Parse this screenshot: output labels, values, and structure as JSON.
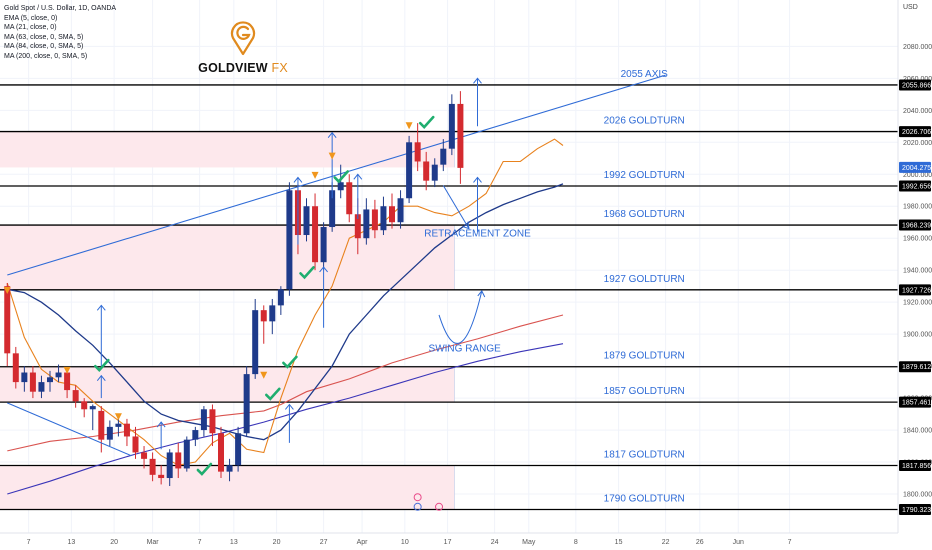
{
  "header": {
    "symbol_line": "Gold Spot / U.S. Dollar, 1D, OANDA",
    "indicators": [
      "EMA (5, close, 0)",
      "MA (21, close, 0)",
      "MA (63, close, 0, SMA, 5)",
      "MA (84, close, 0, SMA, 5)",
      "MA (200, close, 0, SMA, 5)"
    ]
  },
  "logo": {
    "brand": "GOLDVIEW",
    "suffix": "FX",
    "icon": "pin-g-logo-icon"
  },
  "currency": "USD",
  "colors": {
    "bull": "#1e3a8a",
    "bear": "#d42a2f",
    "ema5": "#e8821e",
    "ma21": "#1f3a8a",
    "ma63": "#d9534f",
    "ma84": "#3a35b8",
    "annotation_blue": "#2f6bd6",
    "zone_fill": "#fde8ec",
    "check": "#1fae6f",
    "marker": "#f0961c"
  },
  "chart_data": {
    "type": "candlestick",
    "y_axis": {
      "range": [
        1785,
        2104
      ],
      "tick_labels": [
        "2080.000",
        "2060.000",
        "2040.000",
        "2020.000",
        "2000.000",
        "1980.000",
        "1960.000",
        "1940.000",
        "1920.000",
        "1900.000",
        "1880.000",
        "1860.000",
        "1840.000",
        "1820.000",
        "1800.000"
      ],
      "tick_values": [
        2080,
        2060,
        2040,
        2020,
        2000,
        1980,
        1960,
        1940,
        1920,
        1900,
        1880,
        1860,
        1840,
        1820,
        1800
      ],
      "badges": [
        {
          "text": "2055.866",
          "value": 2055.866
        },
        {
          "text": "2026.706",
          "value": 2026.706
        },
        {
          "text": "2004.275",
          "value": 2004.275,
          "current": true
        },
        {
          "text": "1992.656",
          "value": 1992.656
        },
        {
          "text": "1968.239",
          "value": 1968.239
        },
        {
          "text": "1927.726",
          "value": 1927.726
        },
        {
          "text": "1879.612",
          "value": 1879.612
        },
        {
          "text": "1857.461",
          "value": 1857.461
        },
        {
          "text": "1817.856",
          "value": 1817.856
        },
        {
          "text": "1790.323",
          "value": 1790.323
        }
      ]
    },
    "x_axis": {
      "tick_labels": [
        "7",
        "13",
        "20",
        "Mar",
        "7",
        "13",
        "20",
        "27",
        "Apr",
        "10",
        "17",
        "24",
        "May",
        "8",
        "15",
        "22",
        "26",
        "Jun",
        "7"
      ],
      "tick_index": [
        -12.5,
        -7.5,
        -2.5,
        2,
        7.5,
        11.5,
        16.5,
        22,
        26.5,
        31.5,
        36.5,
        42,
        46,
        51.5,
        56.5,
        62,
        66,
        70.5,
        76.5
      ]
    },
    "levels": [
      {
        "label": "2055 AXIS",
        "value": 2055.866
      },
      {
        "label": "2026 GOLDTURN",
        "value": 2026.706
      },
      {
        "label": "1992 GOLDTURN",
        "value": 1992.656
      },
      {
        "label": "1968 GOLDTURN",
        "value": 1968.239
      },
      {
        "label": "1927 GOLDTURN",
        "value": 1927.726
      },
      {
        "label": "1879 GOLDTURN",
        "value": 1879.612
      },
      {
        "label": "1857 GOLDTURN",
        "value": 1857.461
      },
      {
        "label": "1817 GOLDTURN",
        "value": 1817.856
      },
      {
        "label": "1790 GOLDTURN",
        "value": 1790.323
      }
    ],
    "annotations": [
      {
        "text": "RETRACEMENT ZONE",
        "value": 1961,
        "index": 40
      },
      {
        "text": "SWING RANGE",
        "value": 1889,
        "index": 38.5
      }
    ],
    "zones": [
      {
        "from": 2004.275,
        "to": 2026.706
      },
      {
        "from": 1927.726,
        "to": 1968.239
      },
      {
        "from": 1857.461,
        "to": 1879.612
      },
      {
        "from": 1790.323,
        "to": 1817.856
      }
    ],
    "candles": [
      [
        1930,
        1932,
        1880,
        1888
      ],
      [
        1888,
        1892,
        1866,
        1870
      ],
      [
        1870,
        1880,
        1864,
        1876
      ],
      [
        1876,
        1880,
        1860,
        1864
      ],
      [
        1864,
        1874,
        1860,
        1870
      ],
      [
        1870,
        1877,
        1864,
        1873
      ],
      [
        1873,
        1881,
        1870,
        1876
      ],
      [
        1876,
        1878,
        1860,
        1865
      ],
      [
        1865,
        1868,
        1854,
        1858
      ],
      [
        1858,
        1860,
        1848,
        1853
      ],
      [
        1853,
        1856,
        1840,
        1855
      ],
      [
        1852,
        1855,
        1826,
        1834
      ],
      [
        1834,
        1846,
        1830,
        1842
      ],
      [
        1842,
        1848,
        1836,
        1844
      ],
      [
        1844,
        1847,
        1830,
        1836
      ],
      [
        1836,
        1842,
        1822,
        1826
      ],
      [
        1826,
        1830,
        1816,
        1822
      ],
      [
        1822,
        1826,
        1808,
        1812
      ],
      [
        1812,
        1818,
        1806,
        1810
      ],
      [
        1810,
        1828,
        1805,
        1826
      ],
      [
        1826,
        1832,
        1810,
        1816
      ],
      [
        1816,
        1836,
        1814,
        1834
      ],
      [
        1834,
        1842,
        1830,
        1840
      ],
      [
        1840,
        1855,
        1836,
        1853
      ],
      [
        1853,
        1856,
        1830,
        1838
      ],
      [
        1838,
        1842,
        1810,
        1814
      ],
      [
        1814,
        1822,
        1808,
        1818
      ],
      [
        1818,
        1842,
        1814,
        1838
      ],
      [
        1838,
        1880,
        1836,
        1875
      ],
      [
        1875,
        1922,
        1872,
        1915
      ],
      [
        1915,
        1918,
        1894,
        1908
      ],
      [
        1908,
        1922,
        1900,
        1918
      ],
      [
        1918,
        1930,
        1912,
        1928
      ],
      [
        1928,
        1995,
        1924,
        1990
      ],
      [
        1990,
        1994,
        1950,
        1962
      ],
      [
        1962,
        1985,
        1958,
        1980
      ],
      [
        1980,
        1988,
        1940,
        1945
      ],
      [
        1945,
        1970,
        1940,
        1967
      ],
      [
        1967,
        1995,
        1964,
        1990
      ],
      [
        1990,
        2006,
        1985,
        1995
      ],
      [
        1995,
        2000,
        1970,
        1975
      ],
      [
        1975,
        1985,
        1950,
        1960
      ],
      [
        1960,
        1985,
        1956,
        1978
      ],
      [
        1978,
        1984,
        1960,
        1965
      ],
      [
        1965,
        1986,
        1962,
        1980
      ],
      [
        1980,
        1988,
        1966,
        1970
      ],
      [
        1970,
        1990,
        1966,
        1985
      ],
      [
        1985,
        2024,
        1982,
        2020
      ],
      [
        2020,
        2032,
        2002,
        2008
      ],
      [
        2008,
        2014,
        1990,
        1996
      ],
      [
        1996,
        2010,
        1992,
        2006
      ],
      [
        2006,
        2022,
        2002,
        2016
      ],
      [
        2016,
        2050,
        2012,
        2044
      ],
      [
        2044,
        2052,
        1994,
        2004
      ]
    ],
    "first_candle_index": -15,
    "series": {
      "ema5": [
        [
          -15,
          1932
        ],
        [
          -13,
          1898
        ],
        [
          -11,
          1878
        ],
        [
          -9,
          1870
        ],
        [
          -7,
          1868
        ],
        [
          -5,
          1858
        ],
        [
          -3,
          1850
        ],
        [
          -1,
          1842
        ],
        [
          1,
          1834
        ],
        [
          3,
          1824
        ],
        [
          5,
          1818
        ],
        [
          7,
          1820
        ],
        [
          9,
          1832
        ],
        [
          11,
          1838
        ],
        [
          13,
          1828
        ],
        [
          15,
          1826
        ],
        [
          17,
          1860
        ],
        [
          19,
          1890
        ],
        [
          21,
          1912
        ],
        [
          23,
          1930
        ],
        [
          25,
          1960
        ],
        [
          27,
          1965
        ],
        [
          29,
          1970
        ],
        [
          31,
          1980
        ],
        [
          33,
          1980
        ],
        [
          35,
          1976
        ],
        [
          37,
          1974
        ],
        [
          39,
          1980
        ],
        [
          41,
          1988
        ],
        [
          43,
          2008
        ],
        [
          45,
          2008
        ],
        [
          47,
          2016
        ],
        [
          49,
          2022
        ],
        [
          50,
          2018
        ]
      ],
      "ma21": [
        [
          -15,
          1928
        ],
        [
          -13,
          1926
        ],
        [
          -11,
          1920
        ],
        [
          -9,
          1912
        ],
        [
          -7,
          1902
        ],
        [
          -5,
          1893
        ],
        [
          -3,
          1882
        ],
        [
          -1,
          1870
        ],
        [
          1,
          1858
        ],
        [
          3,
          1850
        ],
        [
          5,
          1846
        ],
        [
          7,
          1844
        ],
        [
          9,
          1842
        ],
        [
          11,
          1839
        ],
        [
          13,
          1836
        ],
        [
          15,
          1834
        ],
        [
          17,
          1840
        ],
        [
          19,
          1852
        ],
        [
          21,
          1866
        ],
        [
          23,
          1880
        ],
        [
          25,
          1900
        ],
        [
          27,
          1912
        ],
        [
          29,
          1924
        ],
        [
          31,
          1934
        ],
        [
          33,
          1944
        ],
        [
          35,
          1954
        ],
        [
          37,
          1962
        ],
        [
          39,
          1970
        ],
        [
          41,
          1976
        ],
        [
          43,
          1981
        ],
        [
          45,
          1985
        ],
        [
          47,
          1989
        ],
        [
          49,
          1992
        ],
        [
          50,
          1994
        ]
      ],
      "ma63": [
        [
          -15,
          1827
        ],
        [
          -10,
          1833
        ],
        [
          -5,
          1836
        ],
        [
          0,
          1840
        ],
        [
          5,
          1845
        ],
        [
          10,
          1849
        ],
        [
          15,
          1852
        ],
        [
          17,
          1856
        ],
        [
          20,
          1864
        ],
        [
          25,
          1872
        ],
        [
          30,
          1882
        ],
        [
          35,
          1890
        ],
        [
          40,
          1897
        ],
        [
          45,
          1905
        ],
        [
          50,
          1912
        ]
      ],
      "ma84": [
        [
          -15,
          1800
        ],
        [
          -10,
          1808
        ],
        [
          -5,
          1817
        ],
        [
          0,
          1825
        ],
        [
          5,
          1832
        ],
        [
          10,
          1838
        ],
        [
          15,
          1845
        ],
        [
          20,
          1853
        ],
        [
          25,
          1860
        ],
        [
          30,
          1868
        ],
        [
          35,
          1876
        ],
        [
          40,
          1883
        ],
        [
          45,
          1889
        ],
        [
          50,
          1894
        ]
      ],
      "trendline": [
        [
          -15,
          1937
        ],
        [
          62,
          2062
        ]
      ]
    },
    "current_price": 2004.275
  }
}
